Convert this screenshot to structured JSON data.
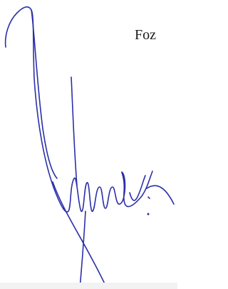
{
  "text": "Foz"
}
